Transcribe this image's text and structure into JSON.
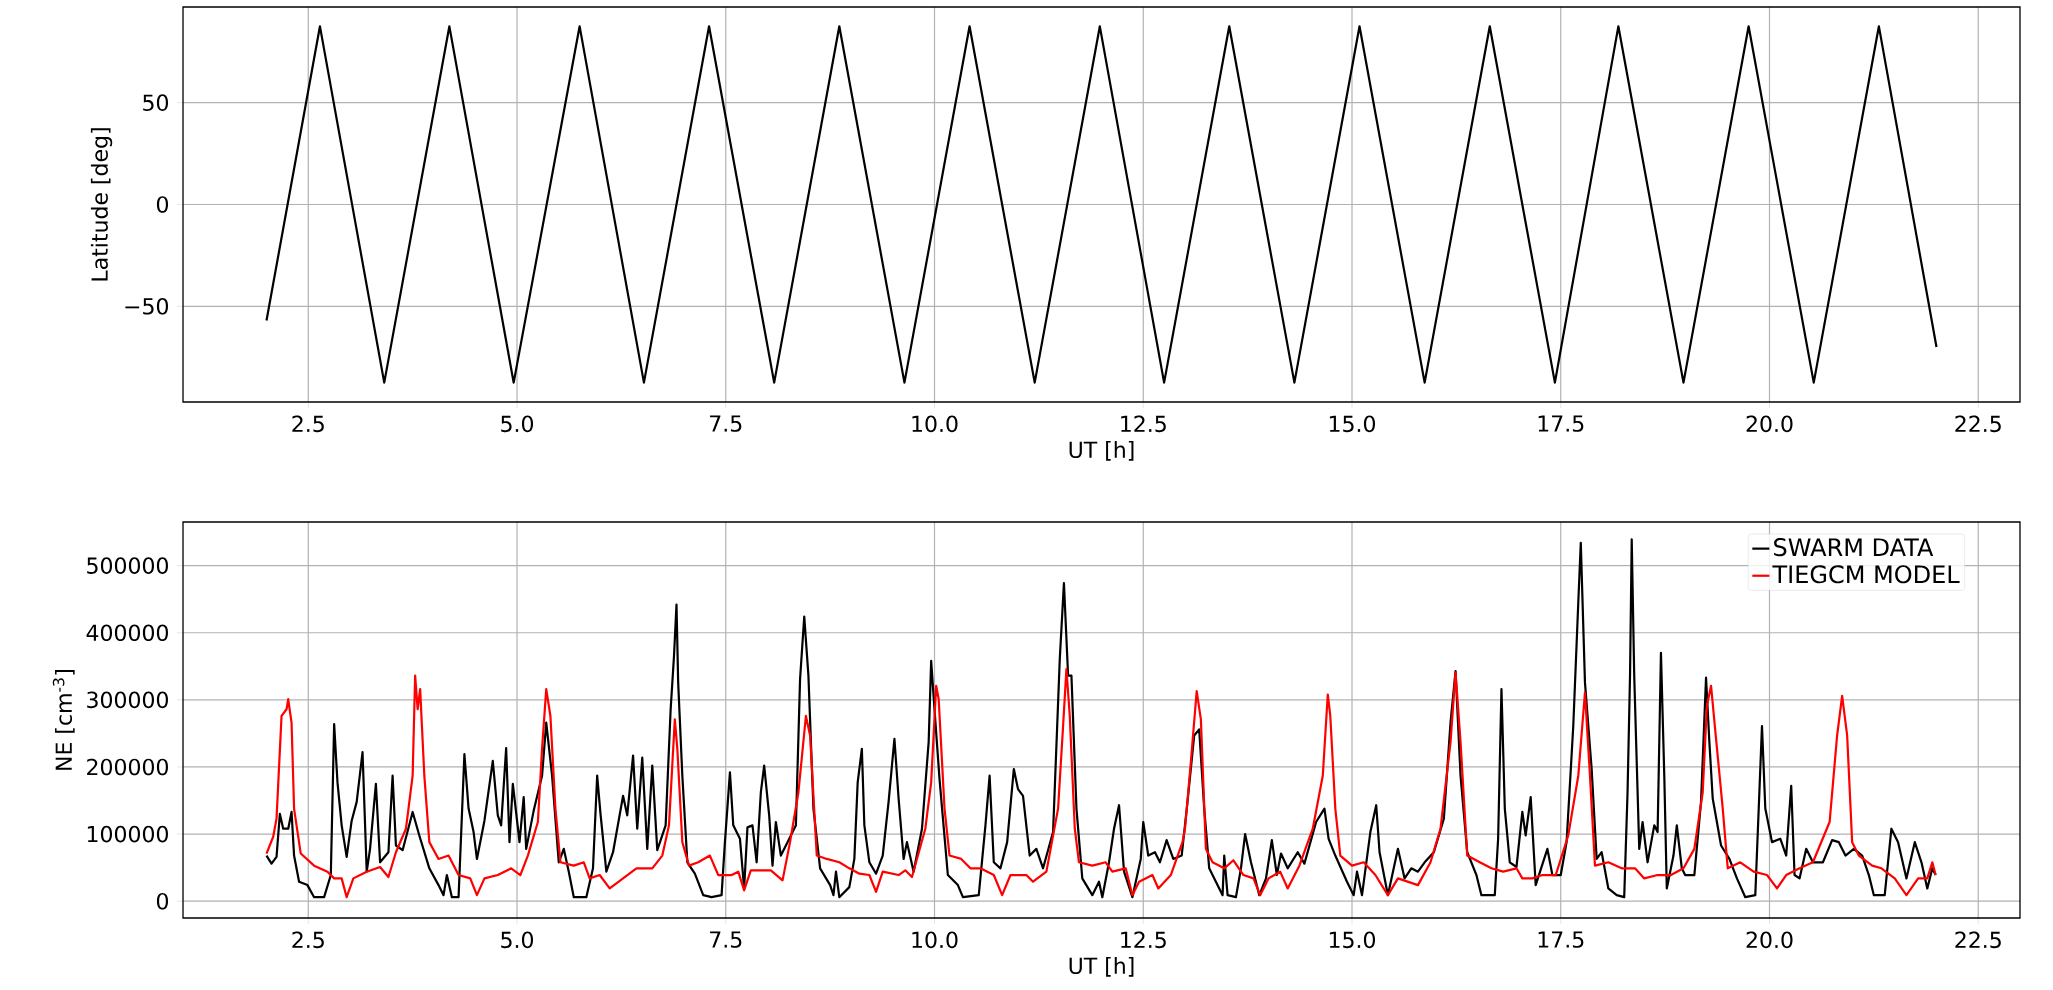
{
  "chart_data": [
    {
      "type": "line",
      "xlabel": "UT [h]",
      "ylabel": "Latitude [deg]",
      "xlim": [
        1.0,
        23.0
      ],
      "ylim": [
        -97,
        97
      ],
      "grid": true,
      "xticks": [
        {
          "value": 2.5,
          "label": "2.5"
        },
        {
          "value": 5,
          "label": "5.0"
        },
        {
          "value": 7.5,
          "label": "7.5"
        },
        {
          "value": 10,
          "label": "10.0"
        },
        {
          "value": 12.5,
          "label": "12.5"
        },
        {
          "value": 15,
          "label": "15.0"
        },
        {
          "value": 17.5,
          "label": "17.5"
        },
        {
          "value": 20,
          "label": "20.0"
        },
        {
          "value": 22.5,
          "label": "22.5"
        }
      ],
      "yticks": [
        {
          "value": -50,
          "label": "−50"
        },
        {
          "value": 0,
          "label": "0"
        },
        {
          "value": 50,
          "label": "50"
        }
      ],
      "series": [
        {
          "color": "#000000",
          "x": [
            2.0,
            2.64,
            3.41,
            4.19,
            4.96,
            5.75,
            6.52,
            7.3,
            8.08,
            8.86,
            9.64,
            10.42,
            11.2,
            11.98,
            12.75,
            13.53,
            14.31,
            15.09,
            15.87,
            16.65,
            17.43,
            18.19,
            18.97,
            19.75,
            20.53,
            21.31,
            22.0
          ],
          "values": [
            -57,
            87.5,
            -87.5,
            87.5,
            -87.5,
            87.5,
            -87.5,
            87.5,
            -87.5,
            87.5,
            -87.5,
            87.5,
            -87.5,
            87.5,
            -87.5,
            87.5,
            -87.5,
            87.5,
            -87.5,
            87.5,
            -87.5,
            87.5,
            -87.5,
            87.5,
            -87.5,
            87.5,
            -70
          ]
        }
      ]
    },
    {
      "type": "line",
      "xlabel": "UT [h]",
      "ylabel": "NE [cm$^{-3}$]",
      "xlim": [
        1.0,
        23.0
      ],
      "ylim": [
        -25000,
        565000
      ],
      "grid": true,
      "legend": "top right",
      "xticks": [
        {
          "value": 2.5,
          "label": "2.5"
        },
        {
          "value": 5,
          "label": "5.0"
        },
        {
          "value": 7.5,
          "label": "7.5"
        },
        {
          "value": 10,
          "label": "10.0"
        },
        {
          "value": 12.5,
          "label": "12.5"
        },
        {
          "value": 15,
          "label": "15.0"
        },
        {
          "value": 17.5,
          "label": "17.5"
        },
        {
          "value": 20,
          "label": "20.0"
        },
        {
          "value": 22.5,
          "label": "22.5"
        }
      ],
      "yticks": [
        0,
        100000,
        200000,
        300000,
        400000,
        500000
      ],
      "series": [
        {
          "name": "SWARM DATA",
          "color": "#000000",
          "x": [
            2.0,
            2.06,
            2.12,
            2.16,
            2.2,
            2.26,
            2.3,
            2.33,
            2.39,
            2.49,
            2.57,
            2.69,
            2.77,
            2.81,
            2.85,
            2.9,
            2.96,
            3.02,
            3.08,
            3.15,
            3.2,
            3.24,
            3.31,
            3.36,
            3.46,
            3.51,
            3.55,
            3.63,
            3.75,
            3.83,
            3.95,
            4.06,
            4.12,
            4.16,
            4.22,
            4.3,
            4.37,
            4.42,
            4.48,
            4.52,
            4.61,
            4.71,
            4.77,
            4.81,
            4.87,
            4.91,
            4.95,
            5.03,
            5.08,
            5.11,
            5.2,
            5.3,
            5.35,
            5.42,
            5.5,
            5.56,
            5.62,
            5.68,
            5.83,
            5.91,
            5.96,
            6.0,
            6.07,
            6.15,
            6.27,
            6.32,
            6.39,
            6.44,
            6.5,
            6.56,
            6.62,
            6.68,
            6.78,
            6.84,
            6.88,
            6.91,
            6.93,
            6.98,
            7.04,
            7.13,
            7.23,
            7.33,
            7.45,
            7.49,
            7.55,
            7.59,
            7.67,
            7.72,
            7.76,
            7.82,
            7.87,
            7.92,
            7.96,
            8.02,
            8.06,
            8.1,
            8.16,
            8.24,
            8.34,
            8.39,
            8.44,
            8.49,
            8.55,
            8.63,
            8.75,
            8.79,
            8.82,
            8.86,
            8.98,
            9.04,
            9.08,
            9.13,
            9.16,
            9.22,
            9.3,
            9.38,
            9.45,
            9.52,
            9.57,
            9.63,
            9.67,
            9.75,
            9.85,
            9.93,
            9.96,
            10.0,
            10.06,
            10.16,
            10.28,
            10.34,
            10.53,
            10.61,
            10.66,
            10.71,
            10.79,
            10.87,
            10.95,
            11.0,
            11.06,
            11.14,
            11.22,
            11.3,
            11.42,
            11.5,
            11.55,
            11.6,
            11.64,
            11.7,
            11.77,
            11.89,
            11.97,
            12.01,
            12.09,
            12.15,
            12.21,
            12.27,
            12.37,
            12.47,
            12.5,
            12.56,
            12.64,
            12.7,
            12.78,
            12.86,
            12.96,
            13.03,
            13.11,
            13.17,
            13.23,
            13.29,
            13.39,
            13.45,
            13.47,
            13.51,
            13.61,
            13.67,
            13.72,
            13.79,
            13.89,
            13.97,
            14.04,
            14.1,
            14.15,
            14.23,
            14.35,
            14.43,
            14.57,
            14.67,
            14.72,
            14.8,
            14.94,
            15.02,
            15.06,
            15.12,
            15.22,
            15.29,
            15.33,
            15.43,
            15.55,
            15.63,
            15.71,
            15.79,
            15.87,
            15.98,
            16.1,
            16.18,
            16.24,
            16.3,
            16.38,
            16.49,
            16.55,
            16.71,
            16.75,
            16.79,
            16.83,
            16.89,
            16.97,
            17.04,
            17.08,
            17.14,
            17.2,
            17.34,
            17.4,
            17.5,
            17.57,
            17.65,
            17.71,
            17.74,
            17.79,
            17.87,
            17.93,
            17.99,
            18.07,
            18.17,
            18.26,
            18.3,
            18.33,
            18.35,
            18.38,
            18.44,
            18.48,
            18.54,
            18.62,
            18.66,
            18.7,
            18.74,
            18.77,
            18.85,
            18.89,
            18.95,
            18.99,
            19.1,
            19.18,
            19.24,
            19.28,
            19.32,
            19.42,
            19.52,
            19.61,
            19.71,
            19.83,
            19.91,
            19.95,
            20.03,
            20.13,
            20.2,
            20.26,
            20.3,
            20.36,
            20.44,
            20.52,
            20.64,
            20.75,
            20.83,
            20.91,
            21.01,
            21.11,
            21.19,
            21.25,
            21.38,
            21.46,
            21.54,
            21.64,
            21.74,
            21.82,
            21.89,
            21.95,
            21.99
          ],
          "values": [
            68000,
            56000,
            66000,
            130000,
            108000,
            108000,
            133000,
            68000,
            29000,
            24000,
            6000,
            6000,
            39000,
            264000,
            177000,
            113000,
            66000,
            120000,
            148000,
            222000,
            44000,
            78000,
            175000,
            58000,
            73000,
            187000,
            83000,
            76000,
            133000,
            98000,
            49000,
            24000,
            9000,
            39000,
            6000,
            6000,
            219000,
            138000,
            103000,
            63000,
            120000,
            209000,
            128000,
            113000,
            228000,
            88000,
            175000,
            88000,
            155000,
            78000,
            135000,
            187000,
            266000,
            187000,
            58000,
            78000,
            44000,
            6000,
            6000,
            49000,
            187000,
            130000,
            44000,
            73000,
            157000,
            128000,
            217000,
            108000,
            214000,
            78000,
            202000,
            76000,
            113000,
            286000,
            365000,
            442000,
            326000,
            187000,
            58000,
            41000,
            9000,
            6000,
            9000,
            88000,
            192000,
            113000,
            93000,
            19000,
            110000,
            113000,
            58000,
            162000,
            202000,
            128000,
            53000,
            118000,
            68000,
            88000,
            113000,
            331000,
            424000,
            336000,
            138000,
            49000,
            24000,
            9000,
            44000,
            6000,
            21000,
            63000,
            177000,
            227000,
            113000,
            58000,
            41000,
            68000,
            148000,
            242000,
            153000,
            63000,
            88000,
            44000,
            108000,
            237000,
            358000,
            286000,
            182000,
            39000,
            24000,
            6000,
            9000,
            113000,
            187000,
            58000,
            49000,
            88000,
            197000,
            167000,
            157000,
            68000,
            78000,
            49000,
            103000,
            360000,
            474000,
            336000,
            336000,
            138000,
            34000,
            9000,
            29000,
            6000,
            58000,
            108000,
            143000,
            44000,
            6000,
            63000,
            118000,
            68000,
            73000,
            58000,
            91000,
            63000,
            68000,
            148000,
            247000,
            256000,
            138000,
            49000,
            24000,
            9000,
            68000,
            9000,
            6000,
            49000,
            100000,
            58000,
            9000,
            34000,
            91000,
            39000,
            71000,
            49000,
            73000,
            56000,
            118000,
            138000,
            93000,
            68000,
            29000,
            9000,
            44000,
            9000,
            103000,
            143000,
            73000,
            9000,
            78000,
            34000,
            49000,
            44000,
            58000,
            73000,
            123000,
            266000,
            343000,
            187000,
            73000,
            39000,
            9000,
            9000,
            93000,
            316000,
            138000,
            58000,
            51000,
            133000,
            98000,
            155000,
            24000,
            78000,
            39000,
            39000,
            88000,
            261000,
            445000,
            534000,
            326000,
            197000,
            63000,
            73000,
            19000,
            9000,
            6000,
            162000,
            338000,
            539000,
            336000,
            78000,
            118000,
            58000,
            113000,
            103000,
            370000,
            187000,
            19000,
            68000,
            113000,
            49000,
            39000,
            39000,
            148000,
            333000,
            237000,
            153000,
            83000,
            63000,
            34000,
            6000,
            9000,
            261000,
            138000,
            88000,
            93000,
            68000,
            172000,
            39000,
            34000,
            78000,
            58000,
            58000,
            91000,
            88000,
            68000,
            78000,
            68000,
            39000,
            9000,
            9000,
            108000,
            88000,
            34000,
            88000,
            58000,
            19000,
            49000,
            39000
          ]
        },
        {
          "name": "TIEGCM MODEL",
          "color": "#ff0000",
          "x": [
            2.0,
            2.08,
            2.12,
            2.18,
            2.24,
            2.26,
            2.3,
            2.33,
            2.41,
            2.57,
            2.73,
            2.81,
            2.9,
            2.96,
            3.04,
            3.2,
            3.36,
            3.46,
            3.55,
            3.67,
            3.75,
            3.78,
            3.81,
            3.84,
            3.89,
            3.95,
            4.06,
            4.18,
            4.3,
            4.44,
            4.52,
            4.61,
            4.77,
            4.93,
            5.04,
            5.13,
            5.25,
            5.3,
            5.35,
            5.4,
            5.46,
            5.52,
            5.68,
            5.8,
            5.87,
            5.99,
            6.11,
            6.27,
            6.43,
            6.62,
            6.74,
            6.82,
            6.89,
            6.92,
            6.98,
            7.06,
            7.17,
            7.31,
            7.41,
            7.57,
            7.65,
            7.72,
            7.8,
            8.04,
            8.18,
            8.27,
            8.37,
            8.46,
            8.51,
            8.59,
            8.71,
            8.86,
            8.98,
            9.1,
            9.22,
            9.3,
            9.38,
            9.57,
            9.65,
            9.73,
            9.89,
            9.96,
            10.02,
            10.05,
            10.12,
            10.18,
            10.32,
            10.43,
            10.55,
            10.71,
            10.81,
            10.91,
            11.1,
            11.18,
            11.34,
            11.48,
            11.54,
            11.58,
            11.62,
            11.68,
            11.73,
            11.89,
            12.05,
            12.13,
            12.29,
            12.37,
            12.45,
            12.61,
            12.68,
            12.83,
            12.97,
            13.0,
            13.07,
            13.14,
            13.19,
            13.25,
            13.33,
            13.47,
            13.58,
            13.7,
            13.82,
            13.9,
            14.0,
            14.14,
            14.23,
            14.37,
            14.53,
            14.65,
            14.71,
            14.74,
            14.8,
            14.86,
            15.0,
            15.14,
            15.28,
            15.43,
            15.55,
            15.79,
            15.94,
            16.06,
            16.18,
            16.24,
            16.3,
            16.38,
            16.53,
            16.67,
            16.81,
            16.97,
            17.04,
            17.16,
            17.28,
            17.44,
            17.59,
            17.71,
            17.79,
            17.85,
            17.91,
            18.07,
            18.23,
            18.39,
            18.5,
            18.66,
            18.82,
            18.97,
            19.1,
            19.2,
            19.25,
            19.3,
            19.36,
            19.44,
            19.5,
            19.65,
            19.81,
            19.97,
            20.09,
            20.2,
            20.36,
            20.52,
            20.72,
            20.81,
            20.87,
            20.93,
            20.99,
            21.07,
            21.23,
            21.34,
            21.5,
            21.64,
            21.78,
            21.89,
            21.95,
            21.99
          ],
          "values": [
            71000,
            96000,
            123000,
            276000,
            286000,
            301000,
            266000,
            138000,
            71000,
            53000,
            44000,
            34000,
            34000,
            6000,
            34000,
            44000,
            51000,
            36000,
            73000,
            108000,
            187000,
            336000,
            286000,
            316000,
            187000,
            88000,
            63000,
            68000,
            39000,
            34000,
            9000,
            34000,
            39000,
            49000,
            39000,
            68000,
            118000,
            227000,
            316000,
            276000,
            138000,
            58000,
            53000,
            58000,
            34000,
            39000,
            19000,
            34000,
            49000,
            49000,
            68000,
            113000,
            271000,
            227000,
            88000,
            53000,
            58000,
            68000,
            39000,
            39000,
            44000,
            16000,
            46000,
            46000,
            31000,
            88000,
            162000,
            276000,
            247000,
            68000,
            63000,
            58000,
            49000,
            41000,
            39000,
            14000,
            44000,
            39000,
            46000,
            36000,
            108000,
            177000,
            321000,
            301000,
            138000,
            68000,
            63000,
            49000,
            49000,
            39000,
            9000,
            39000,
            39000,
            29000,
            44000,
            138000,
            261000,
            346000,
            276000,
            108000,
            58000,
            53000,
            58000,
            44000,
            49000,
            9000,
            29000,
            39000,
            19000,
            39000,
            88000,
            108000,
            207000,
            313000,
            271000,
            78000,
            58000,
            49000,
            61000,
            39000,
            34000,
            9000,
            34000,
            44000,
            19000,
            53000,
            108000,
            187000,
            308000,
            276000,
            138000,
            68000,
            53000,
            58000,
            39000,
            9000,
            34000,
            24000,
            58000,
            108000,
            237000,
            341000,
            237000,
            68000,
            58000,
            49000,
            44000,
            49000,
            34000,
            34000,
            39000,
            39000,
            98000,
            187000,
            311000,
            187000,
            53000,
            58000,
            49000,
            49000,
            34000,
            39000,
            39000,
            49000,
            78000,
            162000,
            291000,
            321000,
            242000,
            138000,
            49000,
            58000,
            44000,
            39000,
            19000,
            39000,
            49000,
            58000,
            118000,
            247000,
            306000,
            247000,
            88000,
            68000,
            53000,
            49000,
            34000,
            9000,
            34000,
            34000,
            58000,
            39000
          ]
        }
      ]
    }
  ]
}
